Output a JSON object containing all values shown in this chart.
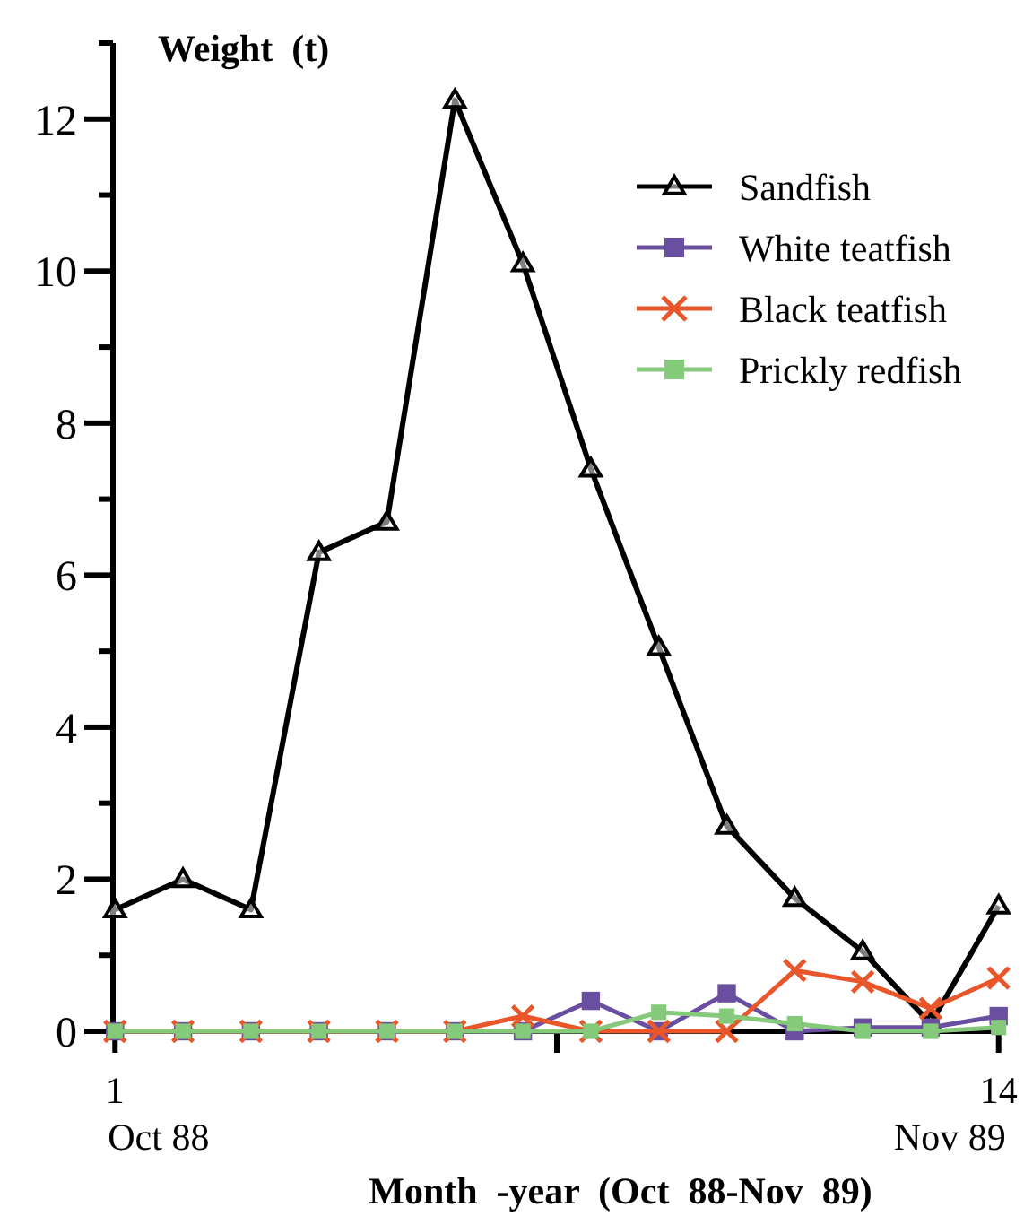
{
  "chart_data": {
    "type": "line",
    "ylabel": "Weight  (t)",
    "xlabel": "Month  -year  (Oct  88-Nov  89)",
    "x": [
      1,
      2,
      3,
      4,
      5,
      6,
      7,
      8,
      9,
      10,
      11,
      12,
      13,
      14
    ],
    "series": [
      {
        "name": "Sandfish",
        "color": "#000000",
        "marker": "triangle",
        "values": [
          1.6,
          2.0,
          1.6,
          6.3,
          6.7,
          12.25,
          10.1,
          7.4,
          5.05,
          2.7,
          1.75,
          1.05,
          0.1,
          1.65
        ]
      },
      {
        "name": "White teatfish",
        "color": "#6a4fa0",
        "marker": "square",
        "values": [
          0,
          0,
          0,
          0,
          0,
          0,
          0,
          0.4,
          0,
          0.5,
          0,
          0.05,
          0.05,
          0.2
        ]
      },
      {
        "name": "Black teatfish",
        "color": "#e8562a",
        "marker": "cross",
        "values": [
          0,
          0,
          0,
          0,
          0,
          0,
          0.2,
          0,
          0,
          0,
          0.8,
          0.65,
          0.3,
          0.7
        ]
      },
      {
        "name": "Prickly redfish",
        "color": "#85c97a",
        "marker": "square",
        "values": [
          0,
          0,
          0,
          0,
          0,
          0,
          0,
          0,
          0.25,
          0.2,
          0.1,
          0,
          0,
          0.05
        ]
      }
    ],
    "xlim": [
      0.97,
      14.03
    ],
    "xticks": [
      1,
      {
        "value": 7.5,
        "label": null
      },
      14
    ],
    "annotations": [
      "Oct 88",
      "Nov 89"
    ],
    "ylim": [
      0,
      13
    ],
    "yticks": [
      0,
      {
        "value": 1,
        "label": null
      },
      2,
      {
        "value": 3,
        "label": null
      },
      4,
      {
        "value": 5,
        "label": null
      },
      6,
      {
        "value": 7,
        "label": null
      },
      8,
      {
        "value": 9,
        "label": null
      },
      10,
      {
        "value": 11,
        "label": null
      },
      12,
      {
        "value": 13,
        "label": null
      }
    ],
    "grid": false,
    "legend": "top right",
    "line_style": "solid"
  }
}
